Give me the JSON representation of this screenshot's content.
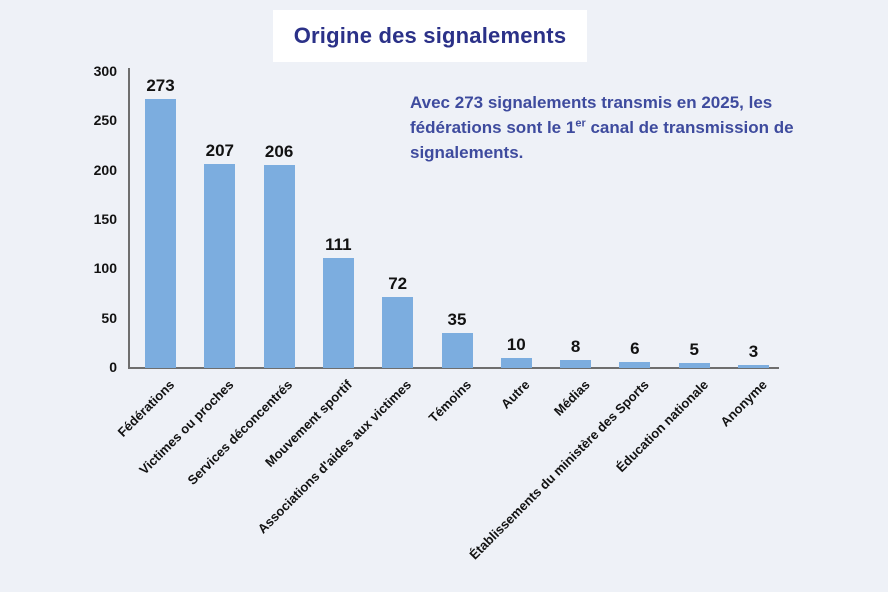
{
  "header": {
    "title": "Origine des signalements"
  },
  "annotation": {
    "line1": "Avec 273 signalements transmis en 2025, les",
    "line2_pre": "fédérations sont le 1",
    "line2_sup": "er",
    "line2_post": " canal de transmission de",
    "line3": "signalements."
  },
  "chart_data": {
    "type": "bar",
    "title": "Origine des signalements",
    "categories": [
      "Fédérations",
      "Victimes ou proches",
      "Services déconcentrés",
      "Mouvement sportif",
      "Associations d'aides aux victimes",
      "Témoins",
      "Autre",
      "Médias",
      "Établissements du ministère des Sports",
      "Éducation nationale",
      "Anonyme"
    ],
    "values": [
      273,
      207,
      206,
      111,
      72,
      35,
      10,
      8,
      6,
      5,
      3
    ],
    "xlabel": "",
    "ylabel": "",
    "ylim": [
      0,
      300
    ],
    "yticks": [
      0,
      50,
      100,
      150,
      200,
      250,
      300
    ],
    "grid": false,
    "legend": "none",
    "bar_labels_shown": true,
    "x_label_rotation_deg": 45,
    "annotation": "Avec 273 signalements transmis en 2025, les fédérations sont le 1er canal de transmission de signalements."
  },
  "colors": {
    "background": "#eef1f7",
    "title_box": "#ffffff",
    "title_text": "#2b3188",
    "annotation_text": "#3e4b9e",
    "bar_fill": "#7caddf",
    "axis_line": "#6e6e6e",
    "label_text": "#121212"
  }
}
